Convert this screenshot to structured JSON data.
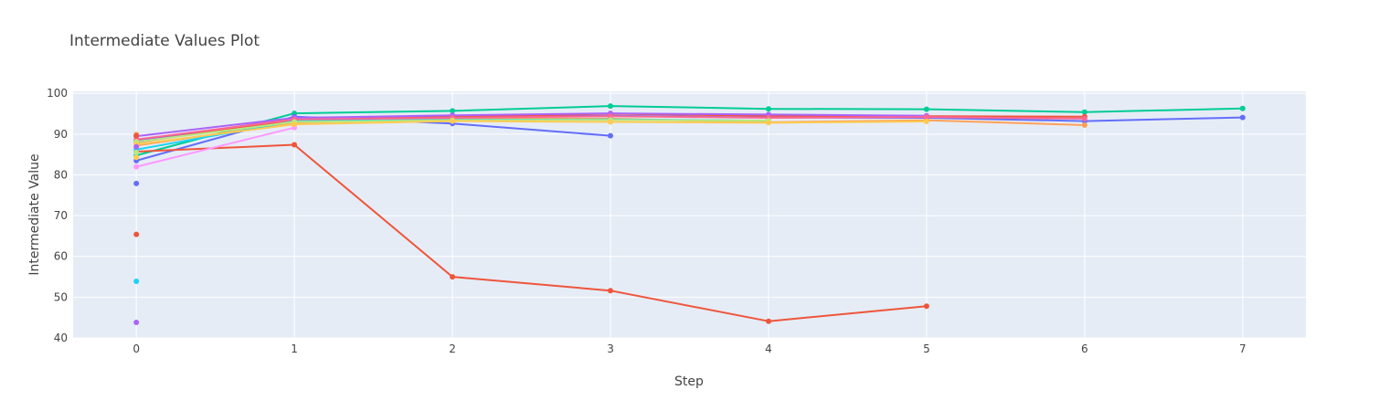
{
  "chart_data": {
    "type": "line",
    "title": "Intermediate Values Plot",
    "xlabel": "Step",
    "ylabel": "Intermediate Value",
    "xlim": [
      -0.4,
      7.4
    ],
    "ylim": [
      40,
      100.5
    ],
    "x_ticks": [
      0,
      1,
      2,
      3,
      4,
      5,
      6,
      7
    ],
    "y_ticks": [
      40,
      50,
      60,
      70,
      80,
      90,
      100
    ],
    "grid": true,
    "legend": "none",
    "colors": {
      "plot_bg": "#e5ecf6",
      "grid": "#ffffff",
      "text": "#444444"
    },
    "series": [
      {
        "color": "#00cc96",
        "x": [
          0,
          1,
          2,
          3,
          4,
          5,
          6,
          7
        ],
        "y": [
          84.8,
          95.1,
          95.7,
          96.9,
          96.2,
          96.1,
          95.4,
          96.3
        ]
      },
      {
        "color": "#636efa",
        "x": [
          0,
          1,
          2,
          3
        ],
        "y": [
          83.5,
          94.3,
          92.6,
          89.6
        ]
      },
      {
        "color": "#636efa",
        "x": [
          0,
          1,
          2,
          3,
          4,
          5,
          6,
          7
        ],
        "y": [
          88.3,
          93.8,
          94.3,
          94.5,
          94.1,
          94.0,
          93.2,
          94.1
        ]
      },
      {
        "color": "#ef553b",
        "x": [
          0,
          1,
          2,
          3,
          4,
          5
        ],
        "y": [
          85.7,
          87.4,
          55.0,
          51.6,
          44.1,
          47.8
        ]
      },
      {
        "color": "#ef553b",
        "x": [
          0,
          1,
          2,
          3,
          4,
          5,
          6
        ],
        "y": [
          88.0,
          93.5,
          94.2,
          95.0,
          94.5,
          94.4,
          94.3
        ]
      },
      {
        "color": "#ab63fa",
        "x": [
          0,
          1,
          2,
          3,
          4,
          5
        ],
        "y": [
          89.5,
          94.0,
          94.6,
          95.1,
          94.8,
          94.5
        ]
      },
      {
        "color": "#ffa15a",
        "x": [
          0,
          1,
          2,
          3,
          4,
          5,
          6
        ],
        "y": [
          87.2,
          92.8,
          93.9,
          93.8,
          92.9,
          93.4,
          92.2
        ]
      },
      {
        "color": "#19d3f3",
        "x": [
          0,
          1,
          2,
          3,
          4
        ],
        "y": [
          86.2,
          93.2,
          93.5,
          93.6,
          93.3
        ]
      },
      {
        "color": "#ff6692",
        "x": [
          0,
          1,
          2,
          3,
          4,
          5,
          6
        ],
        "y": [
          88.7,
          93.6,
          94.0,
          94.4,
          94.0,
          94.2,
          93.8
        ]
      },
      {
        "color": "#b6e880",
        "x": [
          0,
          1,
          2,
          3,
          4
        ],
        "y": [
          88.1,
          93.0,
          93.4,
          93.5,
          93.3
        ]
      },
      {
        "color": "#ff97ff",
        "x": [
          0,
          1
        ],
        "y": [
          82.0,
          91.6
        ]
      },
      {
        "color": "#fecb52",
        "x": [
          0,
          1,
          2,
          3,
          4,
          5
        ],
        "y": [
          87.5,
          92.4,
          93.2,
          93.0,
          92.8,
          93.1
        ]
      },
      {
        "color": "#fecb52",
        "x": [
          0
        ],
        "y": [
          84.3
        ]
      },
      {
        "color": "#b6e880",
        "x": [
          0
        ],
        "y": [
          85.5
        ]
      },
      {
        "color": "#ab63fa",
        "x": [
          0
        ],
        "y": [
          86.9
        ]
      },
      {
        "color": "#ffa15a",
        "x": [
          0
        ],
        "y": [
          89.9
        ]
      },
      {
        "color": "#ef553b",
        "x": [
          0
        ],
        "y": [
          89.6
        ]
      },
      {
        "color": "#636efa",
        "x": [
          0
        ],
        "y": [
          77.9
        ]
      },
      {
        "color": "#ef553b",
        "x": [
          0
        ],
        "y": [
          65.4
        ]
      },
      {
        "color": "#19d3f3",
        "x": [
          0
        ],
        "y": [
          53.9
        ]
      },
      {
        "color": "#ab63fa",
        "x": [
          0
        ],
        "y": [
          43.8
        ]
      }
    ]
  }
}
